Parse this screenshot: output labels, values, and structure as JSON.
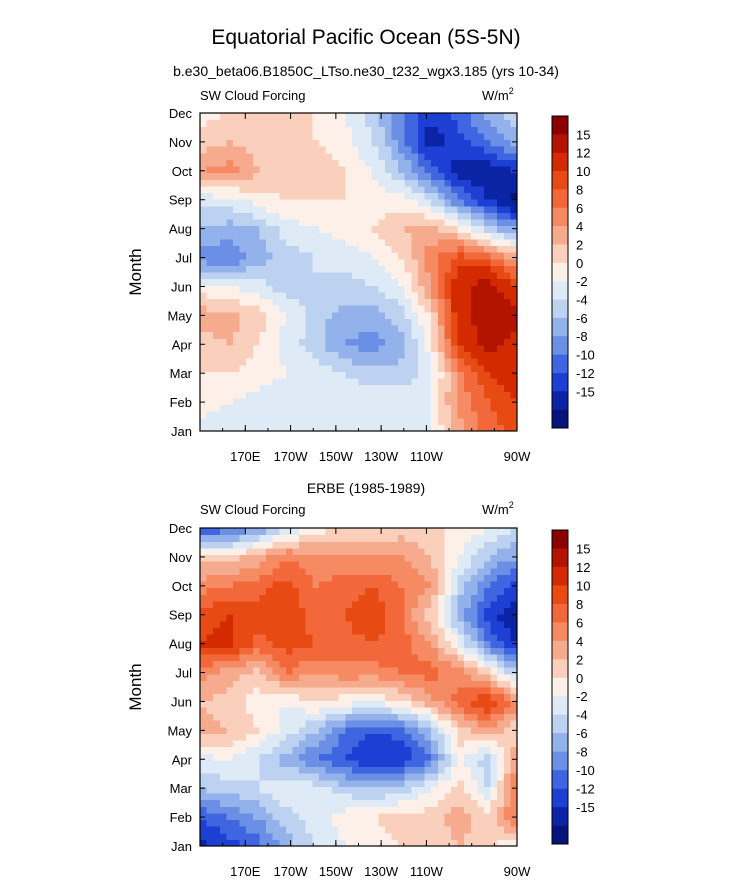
{
  "title": "Equatorial Pacific Ocean (5S-5N)",
  "subtitle": "b.e30_beta06.B1850C_LTso.ne30_t232_wgx3.185 (yrs 10-34)",
  "colorbar": {
    "labels": [
      "15",
      "12",
      "10",
      "8",
      "6",
      "4",
      "2",
      "0",
      "-2",
      "-4",
      "-6",
      "-8",
      "-10",
      "-12",
      "-15"
    ],
    "colors": [
      "#8b0000",
      "#b31400",
      "#d42a00",
      "#e84a14",
      "#f2683a",
      "#f58a63",
      "#f7ab8e",
      "#fad0bd",
      "#fdf0e8",
      "#dfeaf7",
      "#bcd2f0",
      "#93b1ea",
      "#6a8fe5",
      "#3f66e0",
      "#1e3fd4",
      "#0b24a6",
      "#05137a"
    ]
  },
  "chart_data": [
    {
      "type": "heatmap",
      "panel_title": "",
      "left_label": "SW Cloud Forcing",
      "units_text": "W/m",
      "units_sup": "2",
      "ylabel": "Month",
      "xticks": [
        "170E",
        "170W",
        "150W",
        "130W",
        "110W",
        "90W"
      ],
      "yticks": [
        "Jan",
        "Feb",
        "Mar",
        "Apr",
        "May",
        "Jun",
        "Jul",
        "Aug",
        "Sep",
        "Oct",
        "Nov",
        "Dec"
      ],
      "xrange": [
        "160E",
        "90W"
      ],
      "levels": [
        -15,
        -12,
        -10,
        -8,
        -6,
        -4,
        -2,
        0,
        2,
        4,
        6,
        8,
        10,
        12,
        15
      ],
      "grid_lon": [
        "160E",
        "170E",
        "180",
        "170W",
        "160W",
        "150W",
        "140W",
        "130W",
        "120W",
        "110W",
        "100W",
        "90W"
      ],
      "grid_month": [
        "Jan",
        "Feb",
        "Mar",
        "Apr",
        "May",
        "Jun",
        "Jul",
        "Aug",
        "Sep",
        "Oct",
        "Nov",
        "Dec"
      ],
      "values": [
        [
          -1,
          -2,
          -1,
          -1,
          -1,
          -1,
          -1,
          -1,
          0,
          5,
          9,
          11
        ],
        [
          1,
          0,
          -1,
          -2,
          -1,
          -1,
          -1,
          -1,
          0,
          7,
          10,
          12
        ],
        [
          2,
          2,
          1,
          0,
          -1,
          -2,
          -3,
          -3,
          -1,
          7,
          12,
          14
        ],
        [
          3,
          4,
          2,
          -1,
          -3,
          -6,
          -7,
          -5,
          1,
          12,
          16,
          14
        ],
        [
          5,
          5,
          3,
          0,
          -3,
          -5,
          -5,
          -3,
          2,
          14,
          17,
          16
        ],
        [
          1,
          0,
          -1,
          -3,
          -2,
          -3,
          -2,
          0,
          6,
          14,
          17,
          12
        ],
        [
          -7,
          -8,
          -5,
          -3,
          -2,
          -1,
          0,
          2,
          7,
          11,
          9,
          5
        ],
        [
          -4,
          -5,
          -4,
          -1,
          0,
          1,
          2,
          4,
          5,
          2,
          -3,
          -6
        ],
        [
          -1,
          -1,
          1,
          2,
          2,
          2,
          1,
          1,
          -2,
          -8,
          -12,
          -16
        ],
        [
          6,
          7,
          4,
          3,
          3,
          2,
          0,
          -4,
          -9,
          -13,
          -14,
          -12
        ],
        [
          3,
          4,
          3,
          2,
          2,
          1,
          -2,
          -7,
          -13,
          -11,
          -8,
          -5
        ],
        [
          1,
          2,
          2,
          3,
          2,
          0,
          -3,
          -8,
          -12,
          -9,
          -5,
          -2
        ]
      ]
    },
    {
      "type": "heatmap",
      "panel_title": "ERBE (1985-1989)",
      "left_label": "SW Cloud Forcing",
      "units_text": "W/m",
      "units_sup": "2",
      "ylabel": "Month",
      "xticks": [
        "170E",
        "170W",
        "150W",
        "130W",
        "110W",
        "90W"
      ],
      "yticks": [
        "Jan",
        "Feb",
        "Mar",
        "Apr",
        "May",
        "Jun",
        "Jul",
        "Aug",
        "Sep",
        "Oct",
        "Nov",
        "Dec"
      ],
      "xrange": [
        "160E",
        "90W"
      ],
      "levels": [
        -15,
        -12,
        -10,
        -8,
        -6,
        -4,
        -2,
        0,
        2,
        4,
        6,
        8,
        10,
        12,
        15
      ],
      "grid_lon": [
        "160E",
        "170E",
        "180",
        "170W",
        "160W",
        "150W",
        "140W",
        "130W",
        "120W",
        "110W",
        "100W",
        "90W"
      ],
      "grid_month": [
        "Jan",
        "Feb",
        "Mar",
        "Apr",
        "May",
        "Jun",
        "Jul",
        "Aug",
        "Sep",
        "Oct",
        "Nov",
        "Dec"
      ],
      "values": [
        [
          -13,
          -11,
          -9,
          -5,
          -2,
          0,
          1,
          2,
          3,
          4,
          2,
          1
        ],
        [
          -10,
          -8,
          -6,
          -3,
          -1,
          1,
          2,
          3,
          3,
          5,
          3,
          8
        ],
        [
          -4,
          -3,
          -2,
          0,
          -1,
          -3,
          -4,
          -3,
          0,
          3,
          -2,
          9
        ],
        [
          -1,
          0,
          -2,
          -5,
          -8,
          -10,
          -12,
          -12,
          -8,
          1,
          -4,
          6
        ],
        [
          5,
          4,
          2,
          -1,
          -4,
          -8,
          -10,
          -9,
          -4,
          3,
          6,
          2
        ],
        [
          4,
          3,
          1,
          0,
          2,
          1,
          0,
          2,
          5,
          9,
          12,
          7
        ],
        [
          7,
          5,
          3,
          8,
          6,
          7,
          7,
          8,
          9,
          7,
          3,
          -4
        ],
        [
          12,
          13,
          9,
          11,
          10,
          9,
          10,
          9,
          6,
          0,
          -8,
          -12
        ],
        [
          11,
          12,
          11,
          12,
          9,
          10,
          12,
          8,
          3,
          -5,
          -11,
          -14
        ],
        [
          7,
          8,
          9,
          11,
          8,
          9,
          10,
          8,
          6,
          -3,
          -8,
          -11
        ],
        [
          3,
          3,
          5,
          8,
          7,
          6,
          6,
          6,
          4,
          0,
          -4,
          -6
        ],
        [
          -10,
          -9,
          -6,
          -2,
          1,
          2,
          2,
          3,
          2,
          2,
          0,
          -2
        ]
      ]
    }
  ]
}
